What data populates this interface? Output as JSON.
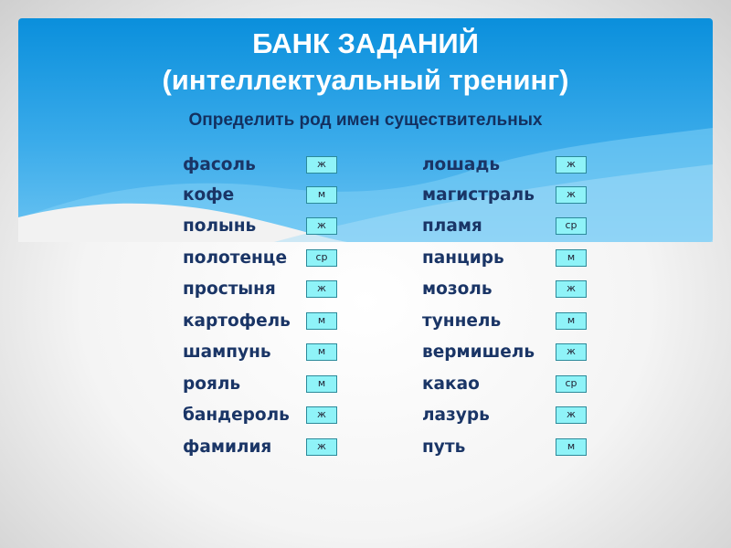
{
  "title_line1": "БАНК ЗАДАНИЙ",
  "title_line2": "(интеллектуальный тренинг)",
  "subtitle": "Определить род имен существительных",
  "left": [
    {
      "word": "фасоль",
      "gender": "ж"
    },
    {
      "word": "кофе",
      "gender": "м"
    },
    {
      "word": "полынь",
      "gender": "ж"
    },
    {
      "word": "полотенце",
      "gender": "ср"
    },
    {
      "word": "простыня",
      "gender": "ж"
    },
    {
      "word": "картофель",
      "gender": "м"
    },
    {
      "word": "шампунь",
      "gender": "м"
    },
    {
      "word": "рояль",
      "gender": "м"
    },
    {
      "word": "бандероль",
      "gender": "ж"
    },
    {
      "word": "фамилия",
      "gender": "ж"
    }
  ],
  "right": [
    {
      "word": "лошадь",
      "gender": "ж"
    },
    {
      "word": "магистраль",
      "gender": "ж"
    },
    {
      "word": "пламя",
      "gender": "ср"
    },
    {
      "word": "панцирь",
      "gender": "м"
    },
    {
      "word": "мозоль",
      "gender": "ж"
    },
    {
      "word": "туннель",
      "gender": "м"
    },
    {
      "word": "вермишель",
      "gender": "ж"
    },
    {
      "word": "какао",
      "gender": "ср"
    },
    {
      "word": "лазурь",
      "gender": "ж"
    },
    {
      "word": "путь",
      "gender": "м"
    }
  ],
  "colors": {
    "header": "#1a95e0",
    "answer_box": "#8ff3f8",
    "text": "#1a3566"
  }
}
